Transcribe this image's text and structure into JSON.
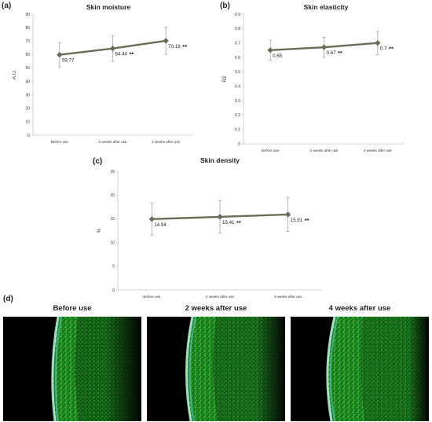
{
  "panels": {
    "a": "(a)",
    "b": "(b)",
    "c": "(c)",
    "d": "(d)"
  },
  "colors": {
    "line": "#6b6b55",
    "marker": "#6b6b55",
    "axis": "#c8c8c8",
    "error": "#888888"
  },
  "chart_data": [
    {
      "type": "line",
      "title": "Skin moisture",
      "ylabel": "A.U.",
      "xlabel": "",
      "categories": [
        "Before use",
        "2 weeks after use",
        "4 weeks after use"
      ],
      "values": [
        59.77,
        64.44,
        70.18
      ],
      "errors": [
        9,
        9.5,
        10
      ],
      "value_labels": [
        "59.77",
        "64.44",
        "70.18"
      ],
      "significance": [
        "",
        "**",
        "**"
      ],
      "ylim": [
        0,
        90
      ],
      "yticks": [
        0,
        10,
        20,
        30,
        40,
        50,
        60,
        70,
        80,
        90
      ],
      "ytick_labels": [
        "0",
        "10",
        "20",
        "30",
        "40",
        "50",
        "60",
        "70",
        "80",
        "90"
      ],
      "grid": false
    },
    {
      "type": "line",
      "title": "Skin elasticity",
      "ylabel": "R2",
      "xlabel": "",
      "categories": [
        "Before use",
        "2 weeks after use",
        "4 weeks after use"
      ],
      "values": [
        0.65,
        0.67,
        0.7
      ],
      "errors": [
        0.07,
        0.07,
        0.08
      ],
      "value_labels": [
        "0.65",
        "0.67",
        "0.7"
      ],
      "significance": [
        "",
        "**",
        "**"
      ],
      "ylim": [
        0,
        0.9
      ],
      "yticks": [
        0,
        0.1,
        0.2,
        0.3,
        0.4,
        0.5,
        0.6,
        0.7,
        0.8,
        0.9
      ],
      "ytick_labels": [
        "0",
        "0.1",
        "0.2",
        "0.3",
        "0.4",
        "0.5",
        "0.6",
        "0.7",
        "0.8",
        "0.9"
      ],
      "grid": false
    },
    {
      "type": "line",
      "title": "Skin density",
      "ylabel": "%",
      "xlabel": "",
      "categories": [
        "Before use",
        "2 weeks after use",
        "4 weeks after use"
      ],
      "values": [
        14.94,
        15.41,
        15.91
      ],
      "errors": [
        3.4,
        3.4,
        3.6
      ],
      "value_labels": [
        "14.94",
        "15.41",
        "15.91"
      ],
      "significance": [
        "",
        "**",
        "**"
      ],
      "ylim": [
        0,
        25
      ],
      "yticks": [
        0,
        5,
        10,
        15,
        20,
        25
      ],
      "ytick_labels": [
        "0",
        "5",
        "10",
        "15",
        "20",
        "25"
      ],
      "grid": false
    }
  ],
  "images": [
    {
      "caption": "Before use"
    },
    {
      "caption": "2 weeks after use"
    },
    {
      "caption": "4 weeks after use"
    }
  ]
}
